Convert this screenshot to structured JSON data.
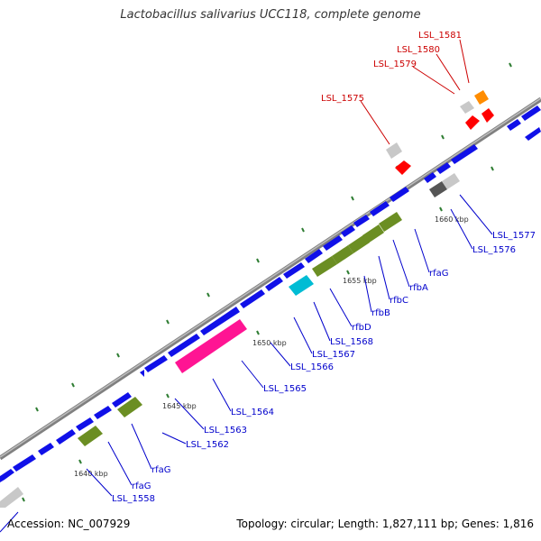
{
  "title": "Lactobacillus salivarius UCC118, complete genome",
  "footer": {
    "accession": "Accession: NC_007929",
    "topology": "Topology: circular; Length: 1,827,111 bp; Genes: 1,816"
  },
  "kbp_labels": [
    "1640 kbp",
    "1645 kbp",
    "1650 kbp",
    "1655 kbp",
    "1660 kbp"
  ],
  "red_labels": [
    "LSL_1575",
    "LSL_1579",
    "LSL_1580",
    "LSL_1581"
  ],
  "blue_labels": [
    "LSL_1558",
    "rfaG",
    "rfaG",
    "LSL_1562",
    "LSL_1563",
    "LSL_1564",
    "LSL_1565",
    "LSL_1566",
    "LSL_1567",
    "LSL_1568",
    "rfbD",
    "rfbB",
    "rfbC",
    "rfbA",
    "rfaG",
    "LSL_1576",
    "LSL_1577"
  ],
  "colors": {
    "blue_gene": "#1010e8",
    "olive_gene": "#6b8e23",
    "magenta_gene": "#ff1493",
    "cyan_gene": "#00bcd4",
    "grey_gene": "#c8c8c8",
    "red_gene": "#ff0000",
    "orange_gene": "#ff8c00",
    "backbone": "#808080",
    "tick": "#2e7d32",
    "blue_label": "#0000cc",
    "red_label": "#cc0000"
  }
}
